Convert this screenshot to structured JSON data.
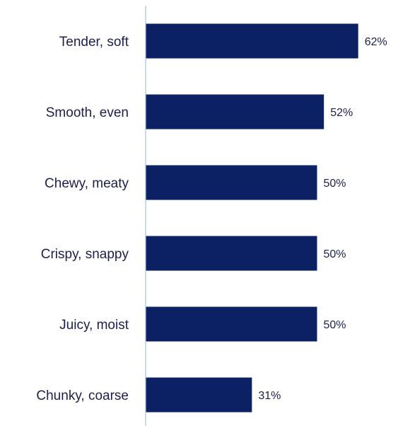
{
  "chart_data": {
    "type": "bar",
    "orientation": "horizontal",
    "categories": [
      "Tender, soft",
      "Smooth, even",
      "Chewy, meaty",
      "Crispy, snappy",
      "Juicy, moist",
      "Chunky, coarse"
    ],
    "values": [
      62,
      52,
      50,
      50,
      50,
      31
    ],
    "value_labels": [
      "62%",
      "52%",
      "50%",
      "50%",
      "50%",
      "31%"
    ],
    "unit": "%",
    "title": "",
    "xlabel": "",
    "ylabel": "",
    "xlim": [
      0,
      100
    ],
    "grid": false,
    "legend": "none",
    "colors": {
      "bar": "#0b2164",
      "axis": "#a9bfe6",
      "text": "#1a1f4d"
    }
  }
}
